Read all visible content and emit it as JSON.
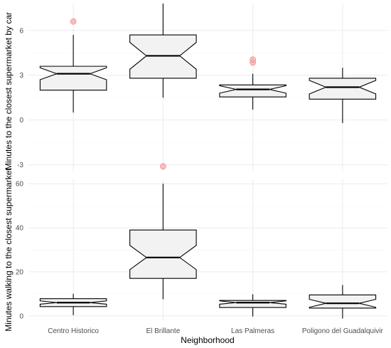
{
  "chart_data": [
    {
      "type": "boxplot",
      "notched": true,
      "categories": [
        "Centro Historico",
        "El Brillante",
        "Las Palmeras",
        "Poligono del Guadalquivir"
      ],
      "ylabel": "Minutes to the closest supermarket by car",
      "yticks": [
        -3,
        0,
        3,
        6
      ],
      "ylim": [
        -3.4,
        7.8
      ],
      "grid": true,
      "boxes": [
        {
          "whisker_low": 0.5,
          "q1": 2.0,
          "median": 3.1,
          "q3": 3.6,
          "whisker_high": 5.7,
          "notch_low": 2.7,
          "notch_high": 3.5,
          "outliers": [
            6.6
          ]
        },
        {
          "whisker_low": 1.5,
          "q1": 2.8,
          "median": 4.3,
          "q3": 5.7,
          "whisker_high": 7.8,
          "notch_low": 3.4,
          "notch_high": 5.2,
          "outliers": [
            -3.1
          ]
        },
        {
          "whisker_low": 0.7,
          "q1": 1.55,
          "median": 2.05,
          "q3": 2.35,
          "whisker_high": 3.1,
          "notch_low": 1.8,
          "notch_high": 2.3,
          "outliers": [
            3.85,
            4.05
          ]
        },
        {
          "whisker_low": -0.2,
          "q1": 1.4,
          "median": 2.2,
          "q3": 2.8,
          "whisker_high": 3.5,
          "notch_low": 1.75,
          "notch_high": 2.65,
          "outliers": []
        }
      ]
    },
    {
      "type": "boxplot",
      "notched": true,
      "categories": [
        "Centro Historico",
        "El Brillante",
        "Las Palmeras",
        "Poligono del Guadalquivir"
      ],
      "ylabel": "Minutes walking to the closest supermarket",
      "xlabel": "Neighborhood",
      "yticks": [
        0,
        20,
        40,
        60
      ],
      "ylim": [
        -2,
        62
      ],
      "grid": true,
      "boxes": [
        {
          "whisker_low": 0.3,
          "q1": 4.2,
          "median": 6.0,
          "q3": 7.8,
          "whisker_high": 10.0,
          "notch_low": 5.3,
          "notch_high": 6.8,
          "outliers": []
        },
        {
          "whisker_low": 7.5,
          "q1": 17.0,
          "median": 26.5,
          "q3": 39.0,
          "whisker_high": 60.0,
          "notch_low": 21.0,
          "notch_high": 32.0,
          "outliers": []
        },
        {
          "whisker_low": -0.3,
          "q1": 3.8,
          "median": 6.0,
          "q3": 7.0,
          "whisker_high": 9.8,
          "notch_low": 5.3,
          "notch_high": 6.8,
          "outliers": []
        },
        {
          "whisker_low": -1.2,
          "q1": 3.5,
          "median": 5.7,
          "q3": 9.5,
          "whisker_high": 14.0,
          "notch_low": 3.9,
          "notch_high": 7.5,
          "outliers": []
        }
      ]
    }
  ]
}
